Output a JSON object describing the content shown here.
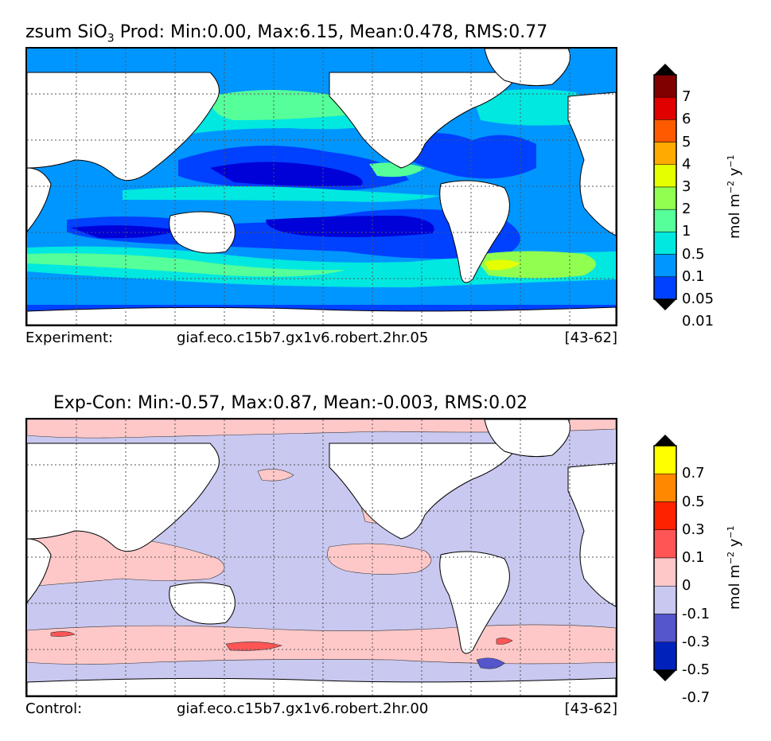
{
  "panel_top": {
    "title_var": "zsum SiO",
    "title_sub": "3",
    "title_rest": " Prod: Min:0.00, Max:6.15, Mean:0.478, RMS:0.77",
    "footer_left": "Experiment:",
    "footer_mid": "giaf.eco.c15b7.gx1v6.robert.2hr.05",
    "footer_right": "[43-62]",
    "colorbar": {
      "labels": [
        "7",
        "6",
        "5",
        "4",
        "3",
        "2",
        "1",
        "0.5",
        "0.1",
        "0.05",
        "0.01"
      ],
      "colors": [
        "#800000",
        "#e00000",
        "#ff5a00",
        "#ffaa00",
        "#e6ff00",
        "#90ff50",
        "#55ff99",
        "#00e8e0",
        "#0096ff",
        "#0040ff",
        "#0000d8",
        "#00008c"
      ],
      "unit_main": "mol m",
      "unit_exp1": "−2",
      "unit_mid": " y",
      "unit_exp2": "−1"
    }
  },
  "panel_bottom": {
    "title": "Exp-Con: Min:-0.57, Max:0.87, Mean:-0.003, RMS:0.02",
    "footer_left": "Control:",
    "footer_mid": "giaf.eco.c15b7.gx1v6.robert.2hr.00",
    "footer_right": "[43-62]",
    "colorbar": {
      "labels": [
        "0.7",
        "0.5",
        "0.3",
        "0.1",
        "0",
        "-0.1",
        "-0.3",
        "-0.5",
        "-0.7"
      ],
      "colors": [
        "#ffff00",
        "#ff8800",
        "#ff2200",
        "#ff5555",
        "#ffc8c8",
        "#c8c8f0",
        "#5555cc",
        "#0022bb",
        "#0088dd",
        "#00ffff"
      ],
      "unit_main": "mol m",
      "unit_exp1": "−2",
      "unit_mid": " y",
      "unit_exp2": "−1"
    }
  }
}
